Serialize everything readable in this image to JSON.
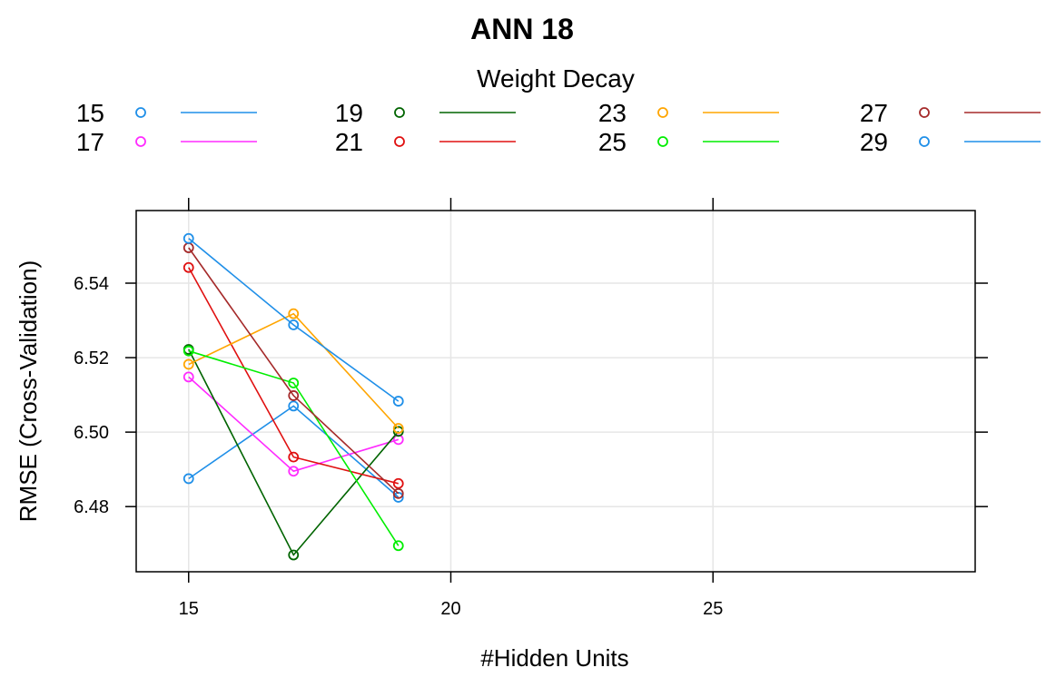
{
  "chart_data": {
    "type": "line",
    "title": "ANN 18",
    "xlabel": "#Hidden Units",
    "ylabel": "RMSE (Cross-Validation)",
    "legend_title": "Weight Decay",
    "legend_placement": "top",
    "x": [
      15,
      17,
      19
    ],
    "xlim": [
      14,
      30
    ],
    "ylim": [
      6.4625,
      6.5595
    ],
    "xticks": [
      15,
      20,
      25
    ],
    "yticks": [
      6.48,
      6.5,
      6.52,
      6.54
    ],
    "grid": true,
    "series": [
      {
        "name": "15",
        "color": "#1f8fe8",
        "values": [
          6.4875,
          6.507,
          6.4825
        ]
      },
      {
        "name": "17",
        "color": "#ff2bff",
        "values": [
          6.5148,
          6.4895,
          6.498
        ]
      },
      {
        "name": "19",
        "color": "#006400",
        "values": [
          6.5222,
          6.467,
          6.5002
        ]
      },
      {
        "name": "21",
        "color": "#e01010",
        "values": [
          6.5442,
          6.4933,
          6.4862
        ]
      },
      {
        "name": "23",
        "color": "#ffa500",
        "values": [
          6.5182,
          6.5318,
          6.501
        ]
      },
      {
        "name": "25",
        "color": "#00ee00",
        "values": [
          6.5218,
          6.5132,
          6.4695
        ]
      },
      {
        "name": "27",
        "color": "#a52a2a",
        "values": [
          6.5495,
          6.5098,
          6.4835
        ]
      },
      {
        "name": "29",
        "color": "#1f8fe8",
        "values": [
          6.552,
          6.5288,
          6.5083
        ]
      }
    ]
  }
}
